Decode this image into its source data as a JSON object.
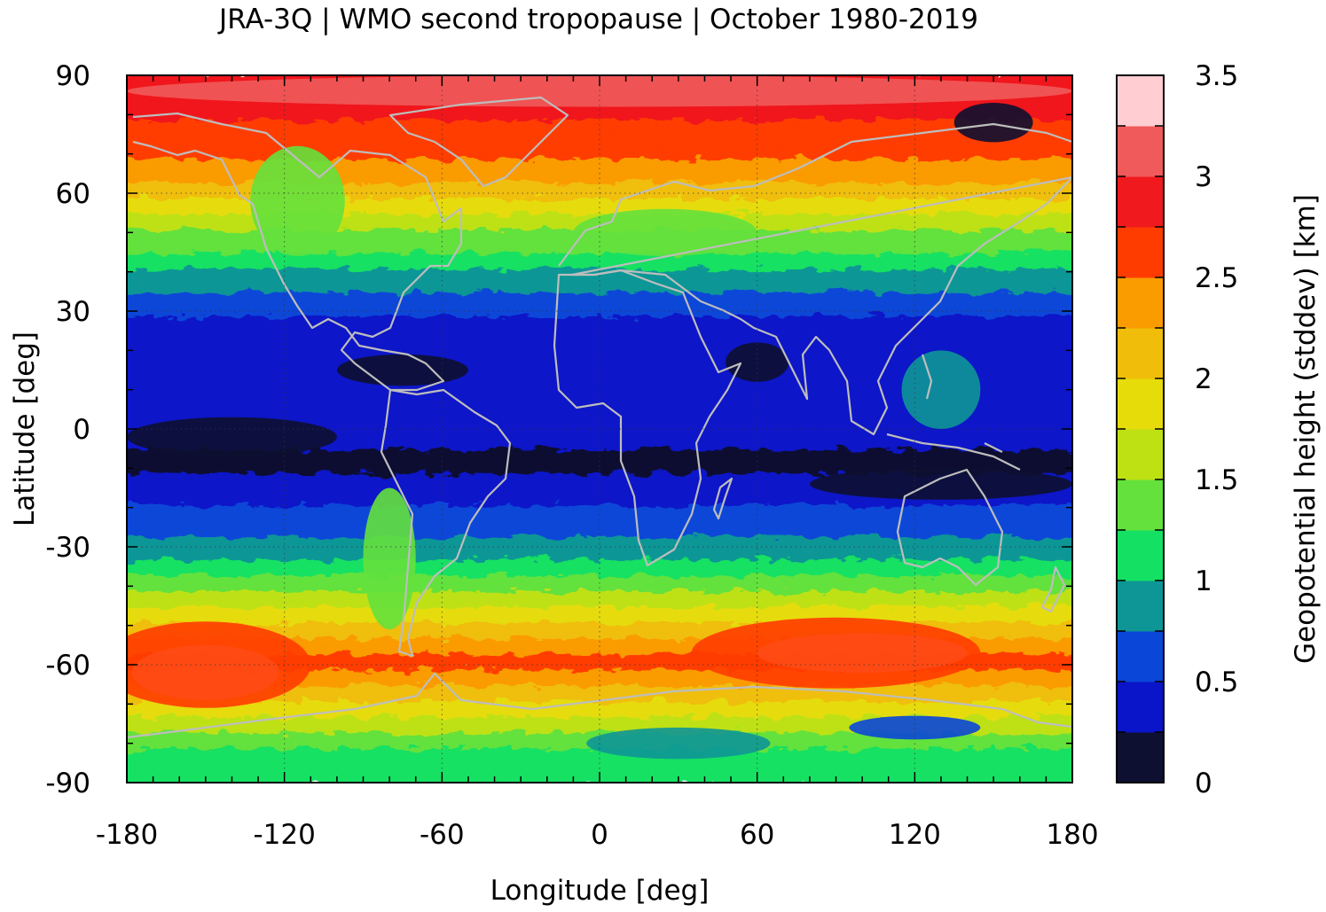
{
  "chart_data": {
    "type": "heatmap",
    "title": "JRA-3Q | WMO second tropopause | October 1980-2019",
    "xlabel": "Longitude [deg]",
    "ylabel": "Latitude [deg]",
    "xlim": [
      -180,
      180
    ],
    "ylim": [
      -90,
      90
    ],
    "xticks": [
      -180,
      -120,
      -60,
      0,
      60,
      120,
      180
    ],
    "yticks": [
      90,
      60,
      30,
      0,
      -30,
      -60,
      -90
    ],
    "grid": true,
    "colorbar": {
      "label": "Geopotential height (stddev) [km]",
      "range": [
        0,
        3.5
      ],
      "ticks": [
        "0",
        "0.5",
        "1",
        "1.5",
        "2",
        "2.5",
        "3",
        "3.5"
      ],
      "levels": [
        0,
        0.25,
        0.5,
        0.75,
        1.0,
        1.25,
        1.5,
        1.75,
        2.0,
        2.25,
        2.5,
        2.75,
        3.0,
        3.25,
        3.5
      ],
      "colors": [
        "#0d1030",
        "#0a14c8",
        "#0a46d8",
        "#0e9696",
        "#14e164",
        "#64e13c",
        "#bee114",
        "#e6dc0a",
        "#f0be0a",
        "#fa9b00",
        "#ff3c00",
        "#f0191e",
        "#f05a5a",
        "#ffcdd2"
      ]
    },
    "zonal_profile": {
      "description_values_km": "approximate zonal-mean stddev by latitude band",
      "lat": [
        90,
        80,
        70,
        60,
        50,
        40,
        30,
        20,
        10,
        0,
        -10,
        -20,
        -30,
        -40,
        -50,
        -60,
        -70,
        -80,
        -90
      ],
      "values": [
        3.0,
        2.8,
        2.6,
        2.1,
        1.5,
        1.0,
        0.55,
        0.35,
        0.35,
        0.3,
        0.2,
        0.5,
        0.8,
        1.3,
        2.0,
        2.7,
        2.0,
        1.3,
        1.1
      ]
    }
  }
}
